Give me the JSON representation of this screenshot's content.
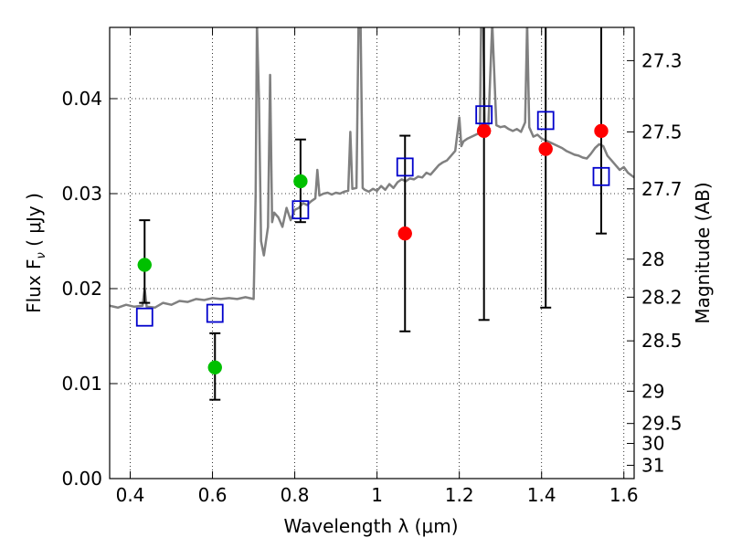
{
  "chart_data": {
    "type": "scatter",
    "title": "",
    "xlabel": "Wavelength  λ (μm)",
    "ylabel": "Flux  F",
    "ylabel_sub": "ν",
    "ylabel_unit": " ( μJy )",
    "y2label": "Magnitude (AB)",
    "xlim": [
      0.35,
      1.625
    ],
    "ylim": [
      0.0,
      0.0475
    ],
    "grid": true,
    "x_ticks": [
      0.4,
      0.6,
      0.8,
      1.0,
      1.2,
      1.4,
      1.6
    ],
    "x_tick_labels": [
      "0.4",
      "0.6",
      "0.8",
      "1",
      "1.2",
      "1.4",
      "1.6"
    ],
    "y_ticks": [
      0.0,
      0.01,
      0.02,
      0.03,
      0.04
    ],
    "y_tick_labels": [
      "0.00",
      "0.01",
      "0.02",
      "0.03",
      "0.04"
    ],
    "mag_ticks": [
      {
        "label": "27.3",
        "flux": 0.044
      },
      {
        "label": "27.5",
        "flux": 0.0365
      },
      {
        "label": "27.7",
        "flux": 0.0305
      },
      {
        "label": "28",
        "flux": 0.0231
      },
      {
        "label": "28.2",
        "flux": 0.0191
      },
      {
        "label": "28.5",
        "flux": 0.0145
      },
      {
        "label": "29",
        "flux": 0.0092
      },
      {
        "label": "29.5",
        "flux": 0.0058
      },
      {
        "label": "30",
        "flux": 0.0037
      },
      {
        "label": "31",
        "flux": 0.0014
      }
    ],
    "series": [
      {
        "marker": "circle",
        "color": "#00c000",
        "points": [
          {
            "x": 0.435,
            "y": 0.0225,
            "err_lo": 0.0185,
            "err_hi": 0.0272
          },
          {
            "x": 0.606,
            "y": 0.0117,
            "err_lo": 0.0083,
            "err_hi": 0.0153
          },
          {
            "x": 0.814,
            "y": 0.0313,
            "err_lo": 0.027,
            "err_hi": 0.0357
          }
        ]
      },
      {
        "marker": "circle",
        "color": "#ff0000",
        "points": [
          {
            "x": 1.068,
            "y": 0.0258,
            "err_lo": 0.0155,
            "err_hi": 0.0361
          },
          {
            "x": 1.26,
            "y": 0.0366,
            "err_lo": 0.0167,
            "err_hi": 0.0475
          },
          {
            "x": 1.41,
            "y": 0.0347,
            "err_lo": 0.018,
            "err_hi": 0.0475
          },
          {
            "x": 1.545,
            "y": 0.0366,
            "err_lo": 0.0258,
            "err_hi": 0.0475
          }
        ]
      },
      {
        "marker": "square",
        "color": "#0000cc",
        "points": [
          {
            "x": 0.435,
            "y": 0.017
          },
          {
            "x": 0.606,
            "y": 0.0174
          },
          {
            "x": 0.814,
            "y": 0.0283
          },
          {
            "x": 1.068,
            "y": 0.0328
          },
          {
            "x": 1.26,
            "y": 0.0383
          },
          {
            "x": 1.41,
            "y": 0.0377
          },
          {
            "x": 1.545,
            "y": 0.0318
          }
        ]
      }
    ],
    "sed_curve": {
      "color": "#808080",
      "points": [
        [
          0.35,
          0.0182
        ],
        [
          0.37,
          0.018
        ],
        [
          0.39,
          0.0183
        ],
        [
          0.41,
          0.0181
        ],
        [
          0.43,
          0.0182
        ],
        [
          0.435,
          0.02
        ],
        [
          0.44,
          0.0181
        ],
        [
          0.46,
          0.018
        ],
        [
          0.48,
          0.0185
        ],
        [
          0.5,
          0.0183
        ],
        [
          0.52,
          0.0187
        ],
        [
          0.54,
          0.0186
        ],
        [
          0.56,
          0.0189
        ],
        [
          0.58,
          0.0188
        ],
        [
          0.6,
          0.019
        ],
        [
          0.62,
          0.0189
        ],
        [
          0.64,
          0.019
        ],
        [
          0.66,
          0.0189
        ],
        [
          0.68,
          0.0191
        ],
        [
          0.7,
          0.0189
        ],
        [
          0.705,
          0.03
        ],
        [
          0.708,
          0.048
        ],
        [
          0.713,
          0.04
        ],
        [
          0.718,
          0.025
        ],
        [
          0.725,
          0.0235
        ],
        [
          0.735,
          0.0265
        ],
        [
          0.74,
          0.0425
        ],
        [
          0.745,
          0.027
        ],
        [
          0.75,
          0.028
        ],
        [
          0.76,
          0.0275
        ],
        [
          0.77,
          0.0265
        ],
        [
          0.78,
          0.0285
        ],
        [
          0.79,
          0.0272
        ],
        [
          0.8,
          0.0283
        ],
        [
          0.81,
          0.0285
        ],
        [
          0.82,
          0.029
        ],
        [
          0.83,
          0.0288
        ],
        [
          0.84,
          0.0292
        ],
        [
          0.85,
          0.0295
        ],
        [
          0.855,
          0.0325
        ],
        [
          0.86,
          0.0298
        ],
        [
          0.87,
          0.03
        ],
        [
          0.88,
          0.0301
        ],
        [
          0.89,
          0.0299
        ],
        [
          0.9,
          0.0301
        ],
        [
          0.91,
          0.03
        ],
        [
          0.92,
          0.0302
        ],
        [
          0.93,
          0.0303
        ],
        [
          0.935,
          0.0365
        ],
        [
          0.94,
          0.0305
        ],
        [
          0.95,
          0.0306
        ],
        [
          0.955,
          0.048
        ],
        [
          0.96,
          0.048
        ],
        [
          0.965,
          0.0306
        ],
        [
          0.97,
          0.0304
        ],
        [
          0.98,
          0.0302
        ],
        [
          0.99,
          0.0305
        ],
        [
          1.0,
          0.0303
        ],
        [
          1.01,
          0.0308
        ],
        [
          1.02,
          0.0304
        ],
        [
          1.03,
          0.031
        ],
        [
          1.04,
          0.0306
        ],
        [
          1.05,
          0.0312
        ],
        [
          1.06,
          0.0315
        ],
        [
          1.07,
          0.0313
        ],
        [
          1.08,
          0.0316
        ],
        [
          1.09,
          0.0315
        ],
        [
          1.1,
          0.0318
        ],
        [
          1.11,
          0.0317
        ],
        [
          1.12,
          0.0322
        ],
        [
          1.13,
          0.032
        ],
        [
          1.14,
          0.0325
        ],
        [
          1.15,
          0.033
        ],
        [
          1.16,
          0.0333
        ],
        [
          1.17,
          0.0335
        ],
        [
          1.18,
          0.034
        ],
        [
          1.19,
          0.0345
        ],
        [
          1.2,
          0.038
        ],
        [
          1.205,
          0.035
        ],
        [
          1.21,
          0.0355
        ],
        [
          1.22,
          0.0358
        ],
        [
          1.23,
          0.036
        ],
        [
          1.24,
          0.0362
        ],
        [
          1.25,
          0.0364
        ],
        [
          1.253,
          0.048
        ],
        [
          1.258,
          0.048
        ],
        [
          1.262,
          0.0366
        ],
        [
          1.27,
          0.0365
        ],
        [
          1.28,
          0.048
        ],
        [
          1.29,
          0.0372
        ],
        [
          1.3,
          0.037
        ],
        [
          1.31,
          0.0371
        ],
        [
          1.32,
          0.0368
        ],
        [
          1.33,
          0.0366
        ],
        [
          1.34,
          0.0368
        ],
        [
          1.35,
          0.0365
        ],
        [
          1.36,
          0.0375
        ],
        [
          1.365,
          0.048
        ],
        [
          1.37,
          0.037
        ],
        [
          1.38,
          0.036
        ],
        [
          1.39,
          0.0362
        ],
        [
          1.4,
          0.0358
        ],
        [
          1.41,
          0.0356
        ],
        [
          1.42,
          0.0354
        ],
        [
          1.43,
          0.0352
        ],
        [
          1.44,
          0.035
        ],
        [
          1.45,
          0.0348
        ],
        [
          1.46,
          0.0345
        ],
        [
          1.47,
          0.0343
        ],
        [
          1.48,
          0.0341
        ],
        [
          1.49,
          0.034
        ],
        [
          1.5,
          0.0338
        ],
        [
          1.51,
          0.0337
        ],
        [
          1.52,
          0.0342
        ],
        [
          1.53,
          0.0348
        ],
        [
          1.54,
          0.0352
        ],
        [
          1.55,
          0.035
        ],
        [
          1.56,
          0.034
        ],
        [
          1.57,
          0.0335
        ],
        [
          1.58,
          0.033
        ],
        [
          1.59,
          0.0325
        ],
        [
          1.6,
          0.0328
        ],
        [
          1.61,
          0.0322
        ],
        [
          1.625,
          0.0317
        ]
      ]
    }
  }
}
